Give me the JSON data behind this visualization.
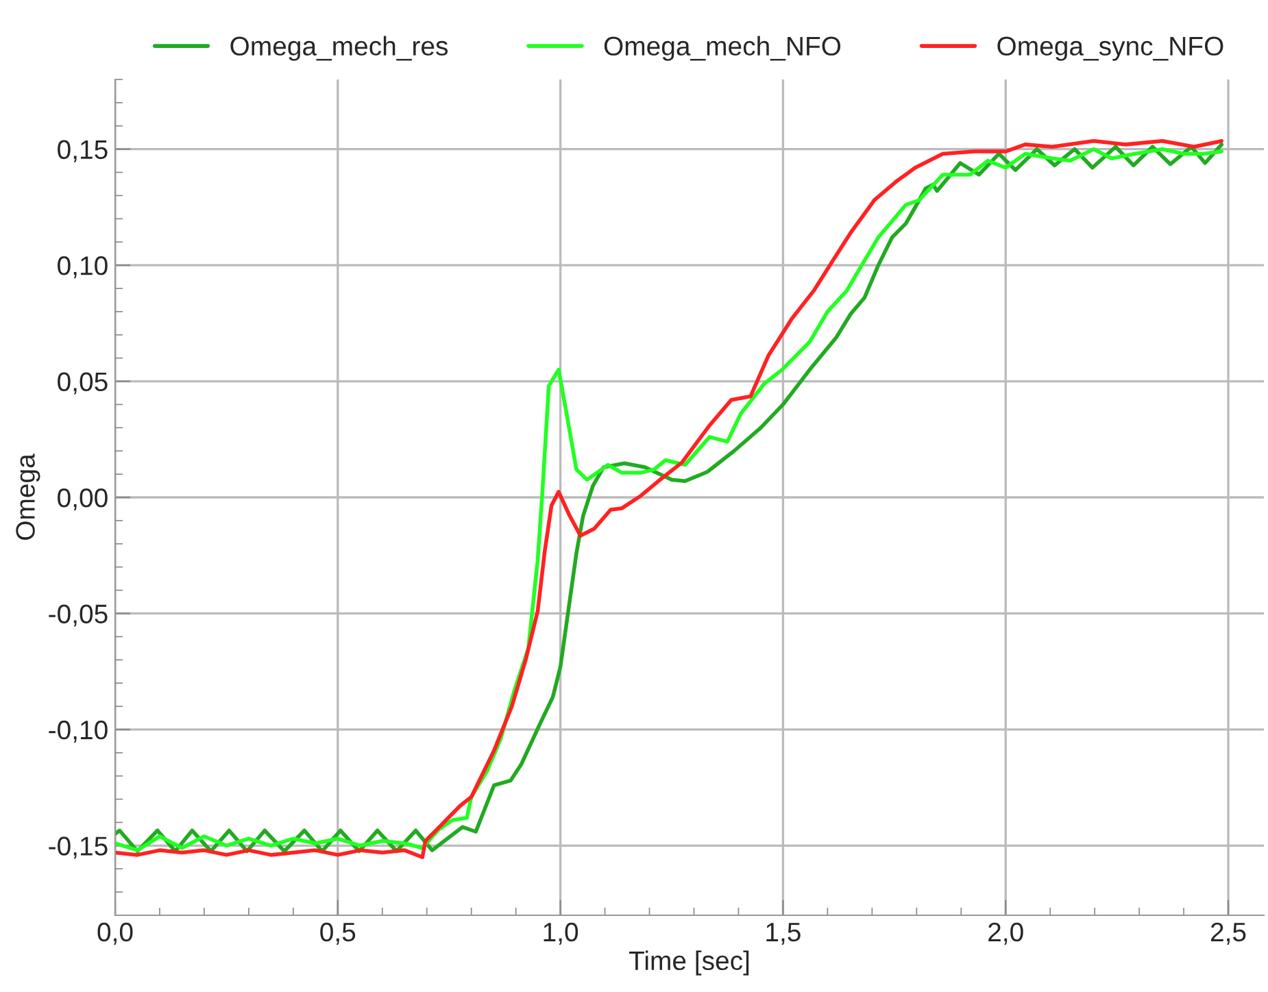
{
  "chart_data": {
    "type": "line",
    "xlabel": "Time [sec]",
    "ylabel": "Omega",
    "xlim": [
      0,
      2.58
    ],
    "ylim": [
      -0.18,
      0.18
    ],
    "xticks": [
      {
        "value": 0,
        "label": "0,0"
      },
      {
        "value": 0.5,
        "label": "0,5"
      },
      {
        "value": 1.0,
        "label": "1,0"
      },
      {
        "value": 1.5,
        "label": "1,5"
      },
      {
        "value": 2.0,
        "label": "2,0"
      },
      {
        "value": 2.5,
        "label": "2,5"
      }
    ],
    "yticks": [
      {
        "value": -0.15,
        "label": "-0,15"
      },
      {
        "value": -0.1,
        "label": "-0,10"
      },
      {
        "value": -0.05,
        "label": "-0,05"
      },
      {
        "value": 0,
        "label": "0,00"
      },
      {
        "value": 0.05,
        "label": "0,05"
      },
      {
        "value": 0.1,
        "label": "0,10"
      },
      {
        "value": 0.15,
        "label": "0,15"
      }
    ],
    "grid": true,
    "legend": "top",
    "marker": "none",
    "line_style": "solid",
    "series": [
      {
        "name": "Omega_mech_res",
        "color": "#22aa22",
        "x": [
          0.0,
          0.01,
          0.05,
          0.095,
          0.135,
          0.173,
          0.215,
          0.256,
          0.296,
          0.336,
          0.38,
          0.425,
          0.465,
          0.506,
          0.548,
          0.589,
          0.632,
          0.675,
          0.712,
          0.78,
          0.81,
          0.851,
          0.888,
          0.912,
          0.953,
          0.983,
          1.0,
          1.014,
          1.036,
          1.051,
          1.073,
          1.097,
          1.144,
          1.19,
          1.25,
          1.28,
          1.33,
          1.39,
          1.45,
          1.5,
          1.56,
          1.62,
          1.652,
          1.683,
          1.714,
          1.745,
          1.776,
          1.8,
          1.82,
          1.837,
          1.846,
          1.898,
          1.94,
          1.985,
          2.022,
          2.07,
          2.11,
          2.155,
          2.195,
          2.247,
          2.287,
          2.33,
          2.37,
          2.417,
          2.448,
          2.485
        ],
        "values": [
          -0.145,
          -0.1435,
          -0.1524,
          -0.1435,
          -0.1524,
          -0.1435,
          -0.1524,
          -0.1435,
          -0.1524,
          -0.1435,
          -0.1524,
          -0.1435,
          -0.1524,
          -0.1435,
          -0.1524,
          -0.1435,
          -0.1524,
          -0.1435,
          -0.152,
          -0.142,
          -0.144,
          -0.124,
          -0.122,
          -0.115,
          -0.098,
          -0.086,
          -0.073,
          -0.054,
          -0.024,
          -0.008,
          0.005,
          0.013,
          0.0147,
          0.013,
          0.0076,
          0.007,
          0.011,
          0.02,
          0.03,
          0.04,
          0.055,
          0.069,
          0.079,
          0.086,
          0.1,
          0.112,
          0.118,
          0.126,
          0.133,
          0.1347,
          0.132,
          0.144,
          0.139,
          0.148,
          0.141,
          0.15,
          0.143,
          0.15,
          0.142,
          0.151,
          0.143,
          0.151,
          0.1435,
          0.151,
          0.144,
          0.152
        ]
      },
      {
        "name": "Omega_mech_NFO",
        "color": "#22ff22",
        "x": [
          0.0,
          0.05,
          0.1,
          0.15,
          0.2,
          0.25,
          0.3,
          0.35,
          0.4,
          0.45,
          0.5,
          0.55,
          0.6,
          0.65,
          0.69,
          0.727,
          0.758,
          0.79,
          0.8,
          0.835,
          0.866,
          0.897,
          0.928,
          0.949,
          0.959,
          0.974,
          0.996,
          1.014,
          1.036,
          1.06,
          1.107,
          1.138,
          1.18,
          1.21,
          1.236,
          1.28,
          1.335,
          1.375,
          1.405,
          1.458,
          1.498,
          1.56,
          1.6,
          1.643,
          1.683,
          1.714,
          1.776,
          1.806,
          1.859,
          1.92,
          1.96,
          2.0,
          2.044,
          2.105,
          2.145,
          2.198,
          2.238,
          2.29,
          2.352,
          2.4,
          2.444,
          2.485
        ],
        "values": [
          -0.149,
          -0.152,
          -0.146,
          -0.151,
          -0.146,
          -0.15,
          -0.147,
          -0.15,
          -0.147,
          -0.149,
          -0.147,
          -0.15,
          -0.148,
          -0.149,
          -0.151,
          -0.143,
          -0.139,
          -0.138,
          -0.129,
          -0.118,
          -0.104,
          -0.083,
          -0.065,
          -0.027,
          0.0006,
          0.048,
          0.055,
          0.036,
          0.012,
          0.0076,
          0.014,
          0.0106,
          0.0106,
          0.012,
          0.016,
          0.014,
          0.026,
          0.024,
          0.036,
          0.049,
          0.055,
          0.067,
          0.08,
          0.089,
          0.102,
          0.112,
          0.126,
          0.128,
          0.139,
          0.139,
          0.145,
          0.142,
          0.148,
          0.146,
          0.145,
          0.15,
          0.146,
          0.148,
          0.15,
          0.148,
          0.148,
          0.149
        ]
      },
      {
        "name": "Omega_sync_NFO",
        "color": "#ff2222",
        "x": [
          0.0,
          0.05,
          0.1,
          0.15,
          0.2,
          0.25,
          0.3,
          0.35,
          0.4,
          0.45,
          0.5,
          0.55,
          0.6,
          0.65,
          0.69,
          0.697,
          0.728,
          0.774,
          0.8,
          0.851,
          0.891,
          0.922,
          0.949,
          0.965,
          0.98,
          0.996,
          1.02,
          1.045,
          1.076,
          1.113,
          1.138,
          1.18,
          1.22,
          1.273,
          1.335,
          1.384,
          1.427,
          1.467,
          1.52,
          1.569,
          1.612,
          1.652,
          1.705,
          1.754,
          1.797,
          1.859,
          1.93,
          2.0,
          2.044,
          2.105,
          2.198,
          2.27,
          2.352,
          2.423,
          2.485
        ],
        "values": [
          -0.153,
          -0.154,
          -0.152,
          -0.153,
          -0.152,
          -0.154,
          -0.152,
          -0.154,
          -0.153,
          -0.152,
          -0.154,
          -0.152,
          -0.153,
          -0.152,
          -0.155,
          -0.148,
          -0.142,
          -0.133,
          -0.129,
          -0.109,
          -0.09,
          -0.07,
          -0.049,
          -0.023,
          -0.0035,
          0.0024,
          -0.0076,
          -0.0165,
          -0.0135,
          -0.0053,
          -0.0047,
          0.0006,
          0.007,
          0.015,
          0.031,
          0.042,
          0.0435,
          0.061,
          0.077,
          0.089,
          0.102,
          0.114,
          0.128,
          0.136,
          0.142,
          0.148,
          0.149,
          0.149,
          0.152,
          0.151,
          0.1535,
          0.152,
          0.1535,
          0.151,
          0.1535
        ]
      }
    ]
  }
}
